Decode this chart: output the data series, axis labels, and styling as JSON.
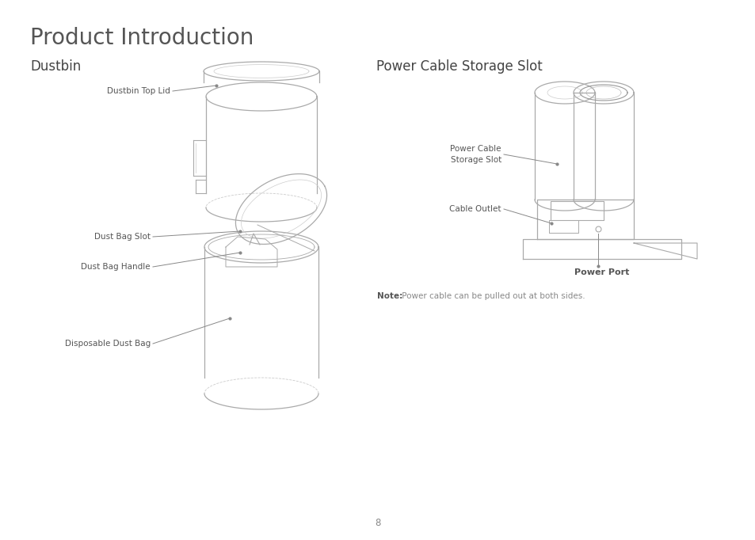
{
  "title": "Product Introduction",
  "title_color": "#555555",
  "title_fontsize": 20,
  "title_fontweight": "normal",
  "bg_color": "#ffffff",
  "section_left": "Dustbin",
  "section_right": "Power Cable Storage Slot",
  "section_color": "#444444",
  "section_fontsize": 12,
  "note_bold": "Note:",
  "note_text": " Power cable can be pulled out at both sides.",
  "note_fontsize": 7.5,
  "page_number": "8",
  "label_fontsize": 7.5,
  "label_color": "#555555",
  "line_color": "#888888",
  "draw_color": "#aaaaaa"
}
